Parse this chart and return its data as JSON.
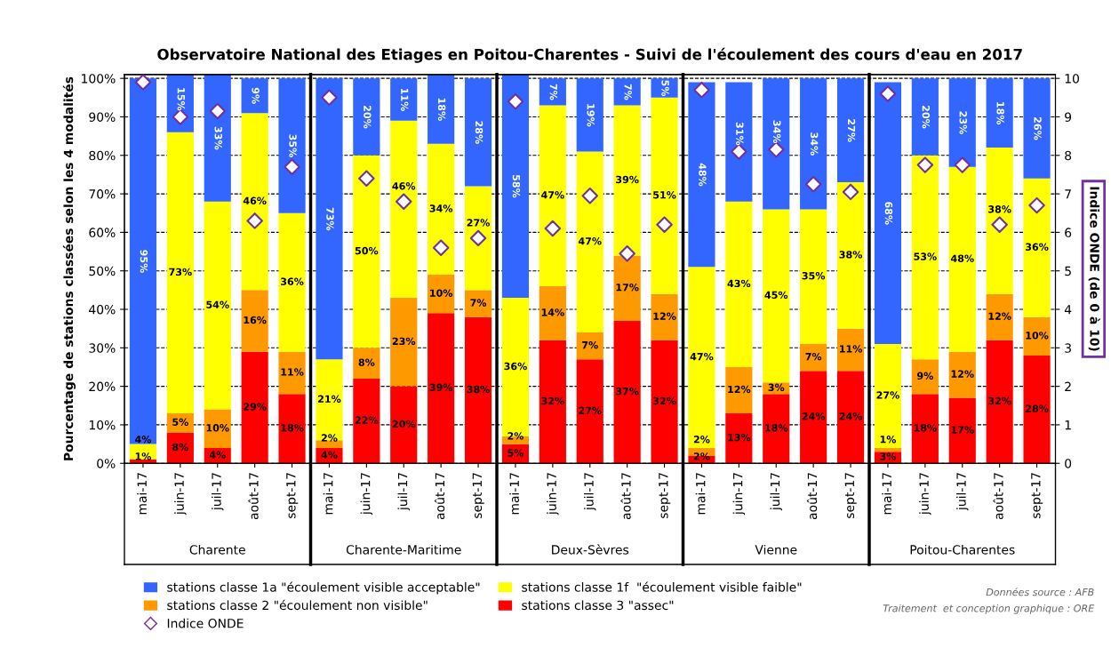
{
  "chart_data": {
    "type": "bar",
    "stacked": true,
    "title": "Observatoire National des Etiages en Poitou-Charentes - Suivi de l'écoulement des cours d'eau en 2017",
    "ylabel": "Pourcentage de stations classées selon les 4 modalités",
    "y2label": "Indice ONDE (de 0 à 10)",
    "categories": [
      "mai-17",
      "juin-17",
      "juil-17",
      "août-17",
      "sept-17",
      "mai-17",
      "juin-17",
      "juil-17",
      "août-17",
      "sept-17",
      "mai-17",
      "juin-17",
      "juil-17",
      "août-17",
      "sept-17",
      "mai-17",
      "juin-17",
      "juil-17",
      "août-17",
      "sept-17",
      "mai-17",
      "juin-17",
      "juil-17",
      "août-17",
      "sept-17"
    ],
    "series": [
      {
        "name": "stations classe 3 \"assec\"",
        "color": "#ff0000",
        "values": [
          1,
          8,
          4,
          29,
          18,
          4,
          22,
          20,
          39,
          38,
          5,
          32,
          27,
          37,
          32,
          2,
          13,
          18,
          24,
          24,
          3,
          18,
          17,
          32,
          28
        ],
        "value_labels": [
          "1%",
          "8%",
          "4%",
          "29%",
          "18%",
          "4%",
          "22%",
          "20%",
          "39%",
          "38%",
          "5%",
          "32%",
          "27%",
          "37%",
          "32%",
          "2%",
          "13%",
          "18%",
          "24%",
          "24%",
          "3%",
          "18%",
          "17%",
          "32%",
          "28%"
        ]
      },
      {
        "name": "stations classe 2 \"écoulement non visible\"",
        "color": "#ff9900",
        "values": [
          0,
          5,
          10,
          16,
          11,
          2,
          8,
          23,
          10,
          7,
          2,
          14,
          7,
          17,
          12,
          2,
          12,
          3,
          7,
          11,
          1,
          9,
          12,
          12,
          10
        ],
        "value_labels": [
          null,
          "5%",
          "10%",
          "16%",
          "11%",
          "2%",
          "8%",
          "23%",
          "10%",
          "7%",
          "2%",
          "14%",
          "7%",
          "17%",
          "12%",
          "2%",
          "12%",
          "3%",
          "7%",
          "11%",
          "1%",
          "9%",
          "12%",
          "12%",
          "10%"
        ]
      },
      {
        "name": "stations classe 1f  \"écoulement visible faible\"",
        "color": "#ffff00",
        "values": [
          4,
          73,
          54,
          46,
          36,
          21,
          50,
          46,
          34,
          27,
          36,
          47,
          47,
          39,
          51,
          47,
          43,
          45,
          35,
          38,
          27,
          53,
          48,
          38,
          36
        ],
        "value_labels": [
          "4%",
          "73%",
          "54%",
          "46%",
          "36%",
          "21%",
          "50%",
          "46%",
          "34%",
          "27%",
          "36%",
          "47%",
          "47%",
          "39%",
          "51%",
          "47%",
          "43%",
          "45%",
          "35%",
          "38%",
          "27%",
          "53%",
          "48%",
          "38%",
          "36%"
        ]
      },
      {
        "name": "stations classe 1a \"écoulement visible acceptable\"",
        "color": "#3366ff",
        "values": [
          95,
          15,
          33,
          9,
          35,
          73,
          20,
          11,
          18,
          28,
          58,
          7,
          19,
          7,
          5,
          48,
          31,
          34,
          34,
          27,
          68,
          20,
          23,
          18,
          26
        ],
        "value_labels": [
          "95%",
          "15%",
          "33%",
          "9%",
          "35%",
          "73%",
          "20%",
          "11%",
          "18%",
          "28%",
          "58%",
          "7%",
          "19%",
          "7%",
          "5%",
          "48%",
          "31%",
          "34%",
          "34%",
          "27%",
          "68%",
          "20%",
          "23%",
          "18%",
          "26%"
        ]
      },
      {
        "name": "Indice ONDE",
        "type": "scatter",
        "axis": "y2",
        "color": "#7030a0",
        "marker": "diamond",
        "values": [
          9.9,
          9.0,
          9.15,
          6.3,
          7.7,
          9.5,
          7.4,
          6.8,
          5.6,
          5.85,
          9.4,
          6.1,
          6.95,
          5.45,
          6.2,
          9.7,
          8.1,
          8.15,
          7.25,
          7.05,
          9.6,
          7.75,
          7.75,
          6.2,
          6.7
        ]
      }
    ],
    "ylim": [
      0,
      101
    ],
    "yticks": [
      {
        "value": 0,
        "label": "0%"
      },
      {
        "value": 10,
        "label": "10%"
      },
      {
        "value": 20,
        "label": "20%"
      },
      {
        "value": 30,
        "label": "30%"
      },
      {
        "value": 40,
        "label": "40%"
      },
      {
        "value": 50,
        "label": "50%"
      },
      {
        "value": 60,
        "label": "60%"
      },
      {
        "value": 70,
        "label": "70%"
      },
      {
        "value": 80,
        "label": "80%"
      },
      {
        "value": 90,
        "label": "90%"
      },
      {
        "value": 100,
        "label": "100%"
      }
    ],
    "y2lim": [
      0,
      10.1
    ],
    "y2ticks": [
      0,
      1,
      2,
      3,
      4,
      5,
      6,
      7,
      8,
      9,
      10
    ],
    "grid": "y",
    "legend": "bottom",
    "annotations": [
      "Charente",
      "Charente-Maritime",
      "Deux-Sèvres",
      "Vienne",
      "Poitou-Charentes",
      "Données source : AFB",
      "Traitement  et conception graphique : ORE"
    ]
  }
}
